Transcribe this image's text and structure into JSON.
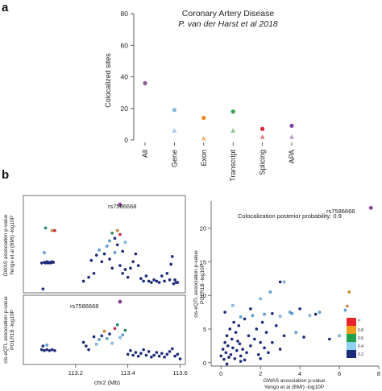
{
  "panel_a_letter": "a",
  "panel_b_letter": "b",
  "chart_data": [
    {
      "type": "scatter",
      "title": "Coronary Artery Disease",
      "subtitle": "P. van der Harst et al 2018",
      "ylabel": "Colocalized sites",
      "ylim": [
        0,
        80
      ],
      "yticks": [
        "0",
        "20",
        "40",
        "60",
        "80"
      ],
      "categories": [
        "All",
        "Gene",
        "Exon",
        "Transcript",
        "Splicing",
        "APA"
      ],
      "series": [
        {
          "marker": "circle",
          "values": [
            36,
            19,
            14,
            18,
            7,
            9
          ],
          "colors": [
            "#8a5d98",
            "#7fb8de",
            "#ef8a1a",
            "#2aa24a",
            "#d7263d",
            "#7e3f9d"
          ]
        },
        {
          "marker": "triangle",
          "values": [
            null,
            6,
            1,
            6,
            2,
            2
          ],
          "colors": [
            "#8a5d98",
            "#a5cde8",
            "#f3b46e",
            "#86c68f",
            "#e57f8a",
            "#b59bc9"
          ]
        }
      ]
    },
    {
      "type": "scatter",
      "ylabel": "GWAS association p-value",
      "ylabel2": "Yengo et al (BMI) -log10P",
      "lead_snp": "rs7586668",
      "lead_point": {
        "x": 113.37,
        "y": 6.8
      },
      "ylim": [
        0,
        7.5
      ],
      "points": [
        [
          113.07,
          2.3
        ],
        [
          113.08,
          2.35
        ],
        [
          113.085,
          2.3
        ],
        [
          113.09,
          2.4
        ],
        [
          113.095,
          2.3
        ],
        [
          113.1,
          2.35
        ],
        [
          113.105,
          2.3
        ],
        [
          113.11,
          2.4
        ],
        [
          113.115,
          2.35
        ],
        [
          113.075,
          0.3
        ],
        [
          113.08,
          3.1
        ],
        [
          113.085,
          5.0
        ],
        [
          113.11,
          4.8
        ],
        [
          113.12,
          4.8
        ],
        [
          113.23,
          0.9
        ],
        [
          113.25,
          1.2
        ],
        [
          113.27,
          1.5
        ],
        [
          113.26,
          2.5
        ],
        [
          113.28,
          2.9
        ],
        [
          113.29,
          3.3
        ],
        [
          113.3,
          2.4
        ],
        [
          113.31,
          3.0
        ],
        [
          113.32,
          3.6
        ],
        [
          113.33,
          2.6
        ],
        [
          113.34,
          1.9
        ],
        [
          113.35,
          3.1
        ],
        [
          113.36,
          3.7
        ],
        [
          113.37,
          2.1
        ],
        [
          113.38,
          1.5
        ],
        [
          113.39,
          1.8
        ],
        [
          113.4,
          1.2
        ],
        [
          113.41,
          1.9
        ],
        [
          113.42,
          2.4
        ],
        [
          113.43,
          3.0
        ],
        [
          113.44,
          2.1
        ],
        [
          113.45,
          1.1
        ],
        [
          113.46,
          0.9
        ],
        [
          113.47,
          1.3
        ],
        [
          113.48,
          0.9
        ],
        [
          113.49,
          0.8
        ],
        [
          113.5,
          1.0
        ],
        [
          113.51,
          0.9
        ],
        [
          113.52,
          0.8
        ],
        [
          113.53,
          1.3
        ],
        [
          113.54,
          0.9
        ],
        [
          113.55,
          1.5
        ],
        [
          113.56,
          1.0
        ],
        [
          113.565,
          2.2
        ],
        [
          113.57,
          2.8
        ],
        [
          113.575,
          0.7
        ],
        [
          113.58,
          1.0
        ],
        [
          113.585,
          0.8
        ],
        [
          113.59,
          0.8
        ],
        [
          113.35,
          4.2
        ],
        [
          113.36,
          4.8
        ],
        [
          113.37,
          4.5
        ],
        [
          113.38,
          3.2
        ],
        [
          113.39,
          3.9
        ],
        [
          113.33,
          4.0
        ],
        [
          113.34,
          4.6
        ]
      ]
    },
    {
      "type": "scatter",
      "ylabel": "cis-eQTL association p-value",
      "ylabel2": "POLR1B -log10P",
      "lead_snp": "rs7586668",
      "lead_point": {
        "x": 113.37,
        "y": 6.8
      },
      "xlabel": "chr2 (Mb)",
      "xticks": [
        "113.2",
        "113.4",
        "113.6"
      ],
      "xlim": [
        113.0,
        113.62
      ],
      "ylim": [
        0,
        7.5
      ],
      "points": [
        [
          113.07,
          1.6
        ],
        [
          113.08,
          1.5
        ],
        [
          113.09,
          1.6
        ],
        [
          113.1,
          1.5
        ],
        [
          113.11,
          1.6
        ],
        [
          113.12,
          1.5
        ],
        [
          113.075,
          2.0
        ],
        [
          113.09,
          2.1
        ],
        [
          113.23,
          2.4
        ],
        [
          113.24,
          2.0
        ],
        [
          113.25,
          1.6
        ],
        [
          113.27,
          3.0
        ],
        [
          113.28,
          2.2
        ],
        [
          113.29,
          2.7
        ],
        [
          113.3,
          3.1
        ],
        [
          113.31,
          3.6
        ],
        [
          113.32,
          2.8
        ],
        [
          113.33,
          3.3
        ],
        [
          113.34,
          2.3
        ],
        [
          113.35,
          3.9
        ],
        [
          113.36,
          4.3
        ],
        [
          113.37,
          2.9
        ],
        [
          113.38,
          3.2
        ],
        [
          113.39,
          3.7
        ],
        [
          113.4,
          1.1
        ],
        [
          113.41,
          1.5
        ],
        [
          113.42,
          1.0
        ],
        [
          113.43,
          1.3
        ],
        [
          113.44,
          0.9
        ],
        [
          113.45,
          1.2
        ],
        [
          113.46,
          1.6
        ],
        [
          113.47,
          1.0
        ],
        [
          113.48,
          1.4
        ],
        [
          113.49,
          0.8
        ],
        [
          113.5,
          1.0
        ],
        [
          113.51,
          1.3
        ],
        [
          113.52,
          0.9
        ],
        [
          113.53,
          1.2
        ],
        [
          113.54,
          0.8
        ],
        [
          113.55,
          1.1
        ],
        [
          113.56,
          1.4
        ],
        [
          113.57,
          1.7
        ],
        [
          113.58,
          0.9
        ],
        [
          113.59,
          1.1
        ],
        [
          113.6,
          0.6
        ]
      ]
    },
    {
      "type": "scatter",
      "title": "Colocalization posterior probability: 0.9",
      "xlabel": "GWAS association p-value",
      "xlabel2": "Yengo et al (BMI) -log10P",
      "ylabel": "cis-eQTL association p-value",
      "ylabel2": "POLR1B -log10P",
      "lead_snp": "rs7586668",
      "lead_point": {
        "x": 7.6,
        "y": 23
      },
      "xlim": [
        -0.5,
        8
      ],
      "ylim": [
        -0.5,
        24
      ],
      "xticks": [
        "0",
        "2",
        "4",
        "6",
        "8"
      ],
      "yticks": [
        "0",
        "5",
        "10",
        "15",
        "20"
      ],
      "legend_label": "r²",
      "legend_ticks": [
        "0.2",
        "0.4",
        "0.6",
        "0.8"
      ],
      "points": [
        [
          0.0,
          1.0
        ],
        [
          0.1,
          2.0
        ],
        [
          0.15,
          0.5
        ],
        [
          0.2,
          3.0
        ],
        [
          0.25,
          1.5
        ],
        [
          0.3,
          4.0
        ],
        [
          0.35,
          2.5
        ],
        [
          0.4,
          0.8
        ],
        [
          0.45,
          5.0
        ],
        [
          0.5,
          1.2
        ],
        [
          0.55,
          3.5
        ],
        [
          0.6,
          2.2
        ],
        [
          0.65,
          6.0
        ],
        [
          0.7,
          0.6
        ],
        [
          0.75,
          4.5
        ],
        [
          0.8,
          1.8
        ],
        [
          0.85,
          3.2
        ],
        [
          0.9,
          5.5
        ],
        [
          0.95,
          2.8
        ],
        [
          1.0,
          1.0
        ],
        [
          1.1,
          2.0
        ],
        [
          1.2,
          6.5
        ],
        [
          1.3,
          1.5
        ],
        [
          1.4,
          4.0
        ],
        [
          1.5,
          2.5
        ],
        [
          1.6,
          7.0
        ],
        [
          1.7,
          3.5
        ],
        [
          1.8,
          5.0
        ],
        [
          1.9,
          1.2
        ],
        [
          2.0,
          3.0
        ],
        [
          2.1,
          6.0
        ],
        [
          2.2,
          2.2
        ],
        [
          2.3,
          4.5
        ],
        [
          2.4,
          1.5
        ],
        [
          2.6,
          3.0
        ],
        [
          2.8,
          5.5
        ],
        [
          3.0,
          2.0
        ],
        [
          3.2,
          4.0
        ],
        [
          0.2,
          7.5
        ],
        [
          0.6,
          8.5
        ],
        [
          1.0,
          6.8
        ],
        [
          1.5,
          8.0
        ],
        [
          2.0,
          9.5
        ],
        [
          2.5,
          10.5
        ],
        [
          3.0,
          12.0
        ],
        [
          3.2,
          12.0
        ],
        [
          3.5,
          7.5
        ],
        [
          4.0,
          8.0
        ],
        [
          4.5,
          7.0
        ],
        [
          5.0,
          7.5
        ],
        [
          5.5,
          3.5
        ],
        [
          6.0,
          4.0
        ],
        [
          6.3,
          7.8
        ],
        [
          6.4,
          8.4
        ],
        [
          6.5,
          10.5
        ],
        [
          2.2,
          7.2
        ],
        [
          2.6,
          7.3
        ],
        [
          3.0,
          6.9
        ],
        [
          3.8,
          4.5
        ],
        [
          4.2,
          3.8
        ],
        [
          1.0,
          0.2
        ],
        [
          1.2,
          0.4
        ],
        [
          0.3,
          -0.2
        ],
        [
          2.0,
          0.6
        ],
        [
          3.6,
          7.3
        ],
        [
          4.8,
          7.2
        ]
      ]
    }
  ]
}
